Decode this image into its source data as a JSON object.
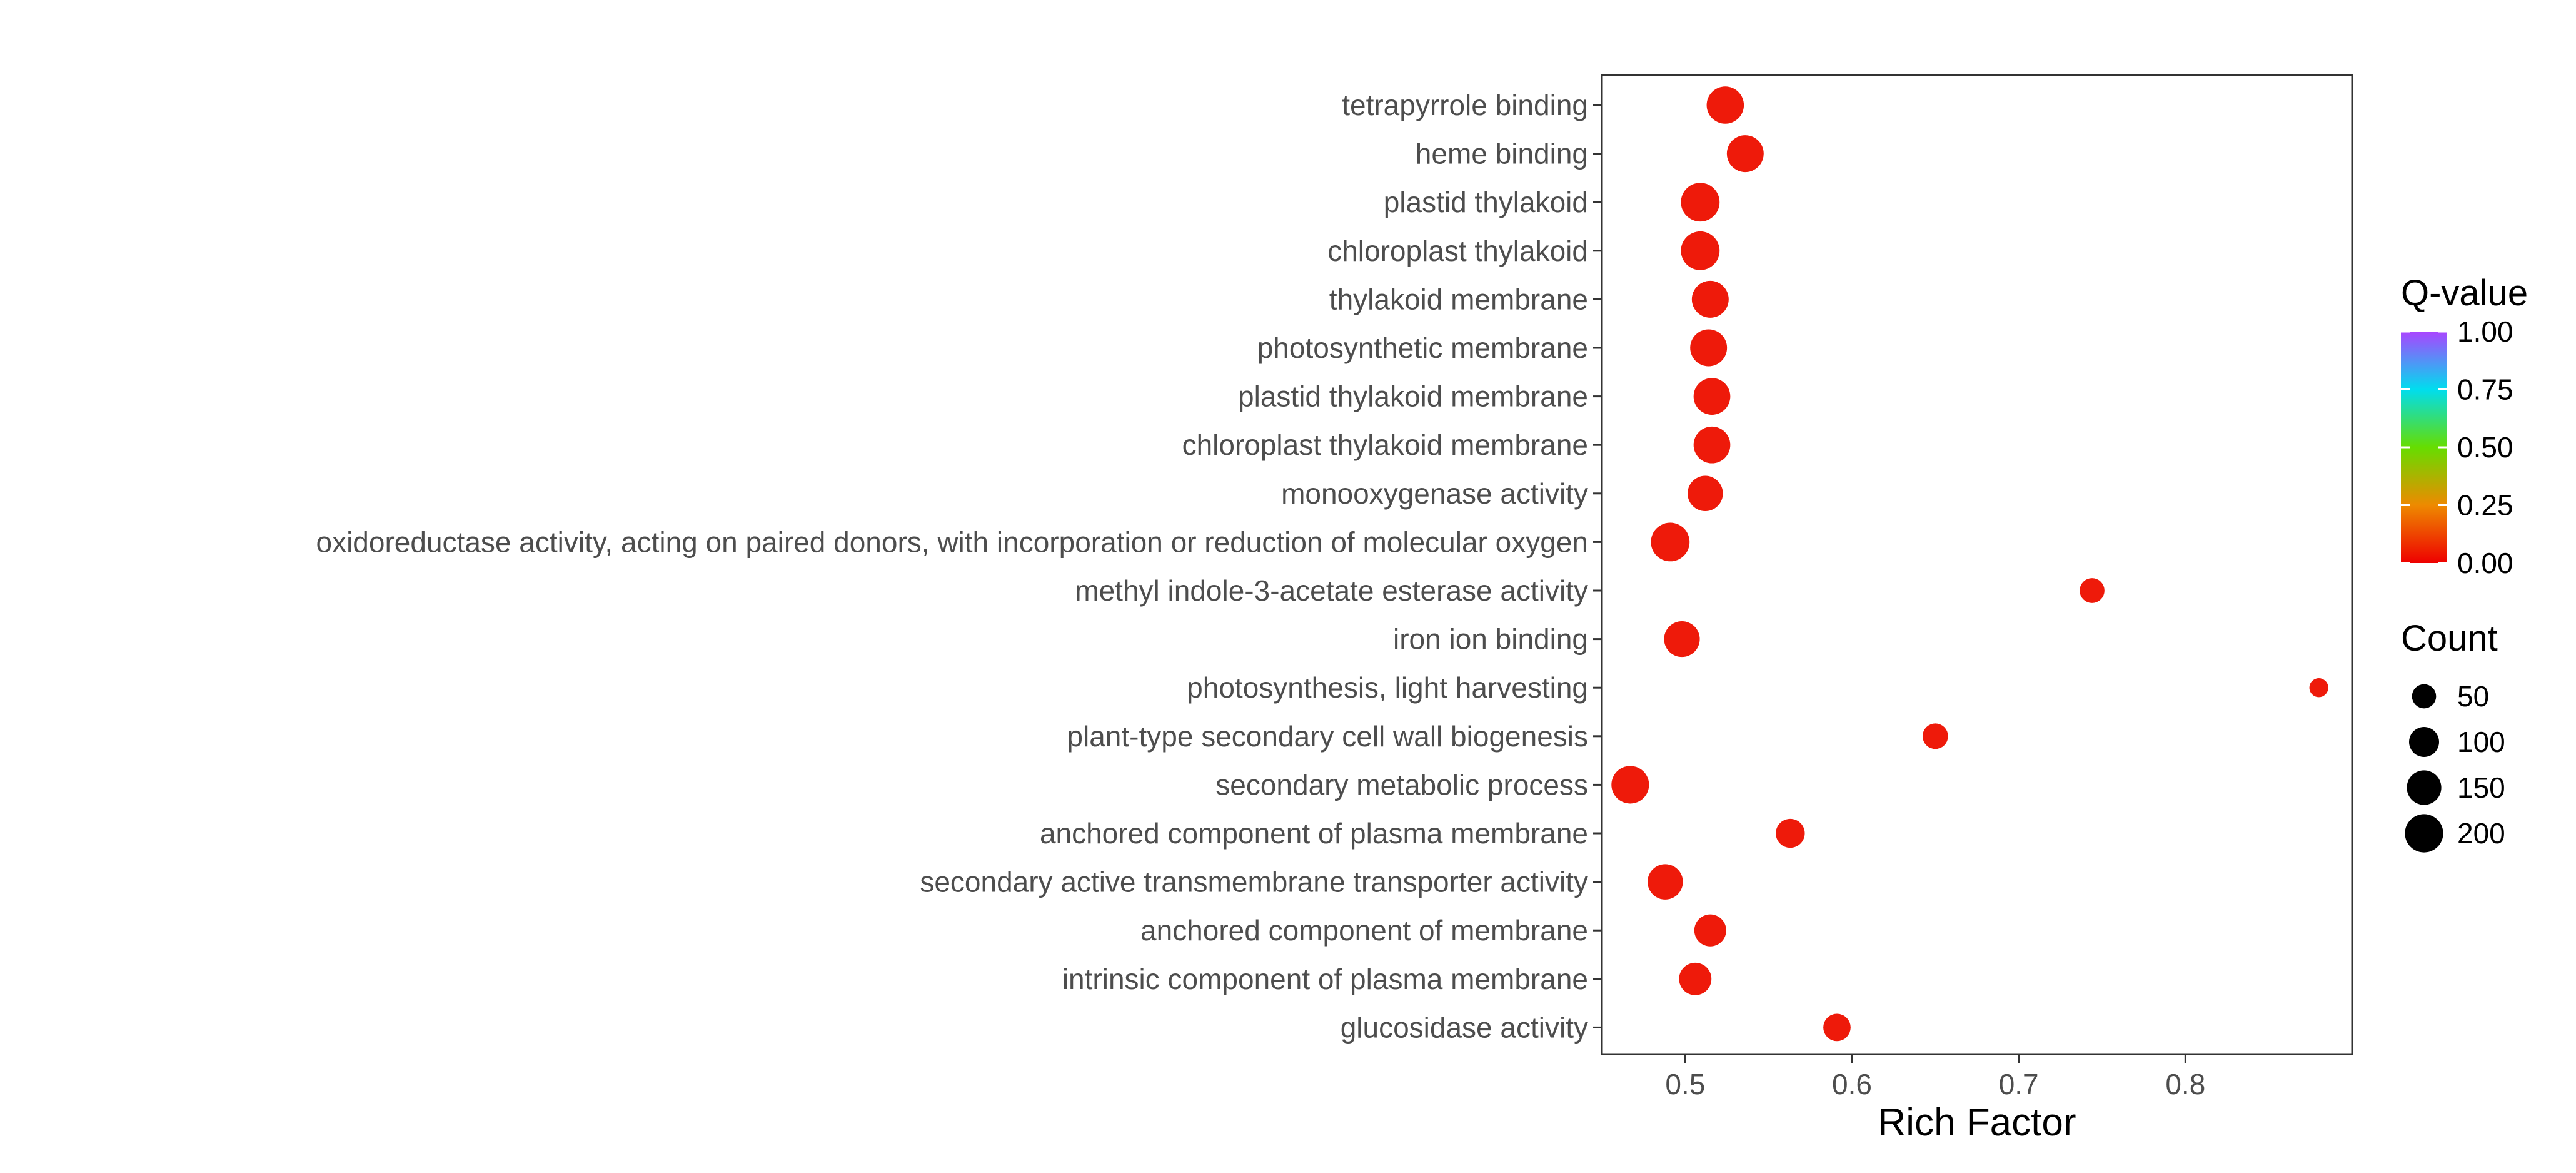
{
  "chart_data": {
    "type": "scatter",
    "xlabel": "Rich Factor",
    "ylabel": "",
    "xlim": [
      0.45,
      0.9
    ],
    "xticks": [
      "0.5",
      "0.6",
      "0.7",
      "0.8"
    ],
    "xtick_values": [
      0.5,
      0.6,
      0.7,
      0.8
    ],
    "grid": false,
    "categories": [
      "tetrapyrrole binding",
      "heme binding",
      "plastid thylakoid",
      "chloroplast thylakoid",
      "thylakoid membrane",
      "photosynthetic membrane",
      "plastid thylakoid membrane",
      "chloroplast thylakoid membrane",
      "monooxygenase activity",
      "oxidoreductase activity, acting on paired donors, with incorporation or reduction of molecular oxygen",
      "methyl indole-3-acetate esterase activity",
      "iron ion binding",
      "photosynthesis, light harvesting",
      "plant-type secondary cell wall biogenesis",
      "secondary metabolic process",
      "anchored component of plasma membrane",
      "secondary active transmembrane transporter activity",
      "anchored component of membrane",
      "intrinsic component of plasma membrane",
      "glucosidase activity"
    ],
    "points": [
      {
        "x": 0.524,
        "count": 185,
        "qvalue": 0.0
      },
      {
        "x": 0.536,
        "count": 180,
        "qvalue": 0.0
      },
      {
        "x": 0.509,
        "count": 205,
        "qvalue": 0.0
      },
      {
        "x": 0.509,
        "count": 205,
        "qvalue": 0.0
      },
      {
        "x": 0.515,
        "count": 180,
        "qvalue": 0.0
      },
      {
        "x": 0.514,
        "count": 180,
        "qvalue": 0.0
      },
      {
        "x": 0.516,
        "count": 178,
        "qvalue": 0.0
      },
      {
        "x": 0.516,
        "count": 178,
        "qvalue": 0.0
      },
      {
        "x": 0.512,
        "count": 160,
        "qvalue": 0.0
      },
      {
        "x": 0.491,
        "count": 205,
        "qvalue": 0.0
      },
      {
        "x": 0.744,
        "count": 55,
        "qvalue": 0.0
      },
      {
        "x": 0.498,
        "count": 165,
        "qvalue": 0.0
      },
      {
        "x": 0.88,
        "count": 20,
        "qvalue": 0.0
      },
      {
        "x": 0.65,
        "count": 60,
        "qvalue": 0.0
      },
      {
        "x": 0.467,
        "count": 190,
        "qvalue": 0.0
      },
      {
        "x": 0.563,
        "count": 90,
        "qvalue": 0.0
      },
      {
        "x": 0.488,
        "count": 160,
        "qvalue": 0.0
      },
      {
        "x": 0.515,
        "count": 120,
        "qvalue": 0.0
      },
      {
        "x": 0.506,
        "count": 125,
        "qvalue": 0.0
      },
      {
        "x": 0.591,
        "count": 75,
        "qvalue": 0.0
      }
    ],
    "color_legend": {
      "title": "Q-value",
      "range": [
        0,
        1
      ],
      "labels": [
        "1.00",
        "0.75",
        "0.50",
        "0.25",
        "0.00"
      ],
      "values": [
        1.0,
        0.75,
        0.5,
        0.25,
        0.0
      ],
      "gradient": [
        "#ee0000",
        "#ee8a00",
        "#66dd00",
        "#00ddee",
        "#aa44ff"
      ]
    },
    "size_legend": {
      "title": "Count",
      "labels": [
        "50",
        "100",
        "150",
        "200"
      ],
      "values": [
        50,
        100,
        150,
        200
      ]
    },
    "point_color": "#ee1a0a"
  }
}
